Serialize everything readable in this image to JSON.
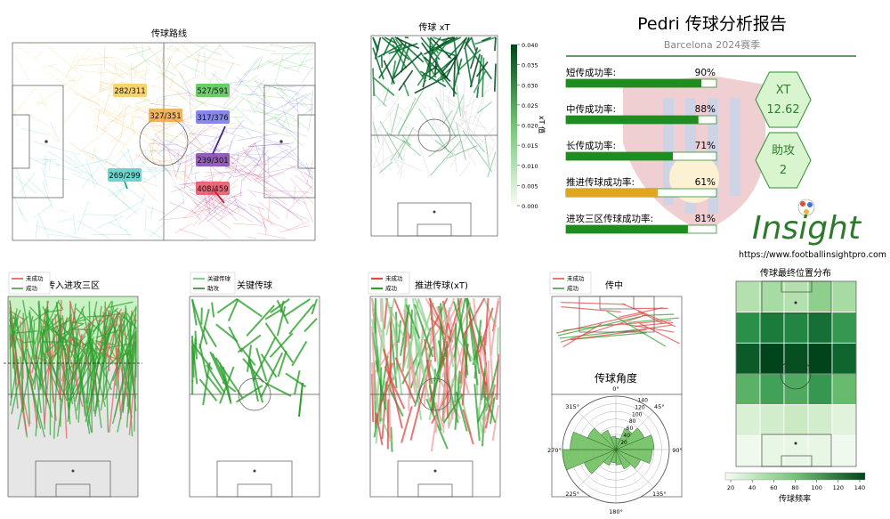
{
  "report": {
    "title": "Pedri 传球分析报告",
    "subtitle": "Barcelona 2024赛季",
    "website": "https://www.footballinsightpro.com",
    "logo_text": "Insight"
  },
  "colors": {
    "accent": "#1e8c1e",
    "gold": "#e0a521",
    "hex_fill": "#d9f5d0",
    "hex_border": "#2f8f2f",
    "success": "#2ca02c",
    "fail": "#e04848"
  },
  "rates": [
    {
      "label": "短传成功率:",
      "value_text": "90%",
      "value": 0.9,
      "color": "#1e8c1e"
    },
    {
      "label": "中传成功率:",
      "value_text": "88%",
      "value": 0.88,
      "color": "#1e8c1e"
    },
    {
      "label": "长传成功率:",
      "value_text": "71%",
      "value": 0.71,
      "color": "#1e8c1e"
    },
    {
      "label": "推进传球成功率:",
      "value_text": "61%",
      "value": 0.61,
      "color": "#e0a521"
    },
    {
      "label": "进攻三区传球成功率:",
      "value_text": "81%",
      "value": 0.81,
      "color": "#1e8c1e"
    }
  ],
  "badges": [
    {
      "label": "XT",
      "value": "12.62"
    },
    {
      "label": "助攻",
      "value": "2"
    }
  ],
  "panels": {
    "routes_title": "传球路线",
    "xt_title": "传球 xT",
    "xt_colorbar_label": "xT 值",
    "final_third_title": "传入进攻三区",
    "key_pass_title": "关键传球",
    "progressive_title": "推进传球(xT)",
    "cross_title": "传中",
    "angle_title": "传球角度",
    "heatmap_title": "传球最终位置分布",
    "heatmap_colorbar_label": "传球频率"
  },
  "legends": {
    "final_third": [
      "未成功",
      "成功"
    ],
    "key_pass": [
      "关键传球",
      "助攻"
    ],
    "progressive": [
      "未成功",
      "成功"
    ],
    "cross": [
      "未成功",
      "成功"
    ]
  },
  "chart_data": [
    {
      "type": "scatter",
      "title": "传球路线",
      "zones": [
        {
          "label": "282/311",
          "color": "#f6c94c"
        },
        {
          "label": "527/591",
          "color": "#49c049"
        },
        {
          "label": "327/351",
          "color": "#f0a33a"
        },
        {
          "label": "317/376",
          "color": "#6a6ae8"
        },
        {
          "label": "239/301",
          "color": "#7a3aa8"
        },
        {
          "label": "269/299",
          "color": "#4cc9c4"
        },
        {
          "label": "408/459",
          "color": "#e8455a"
        }
      ]
    },
    {
      "type": "heatmap",
      "title": "传球 xT",
      "colorbar_ticks": [
        "0.040",
        "0.035",
        "0.030",
        "0.025",
        "0.020",
        "0.015",
        "0.010",
        "0.005",
        "0.000"
      ],
      "clim": [
        0,
        0.04
      ]
    },
    {
      "type": "pie",
      "title": "传球角度",
      "angle_labels": [
        "0°",
        "45°",
        "90°",
        "135°",
        "180°",
        "225°",
        "270°",
        "315°"
      ],
      "radial_ticks": [
        "20",
        "40",
        "60",
        "80",
        "100",
        "120",
        "140"
      ],
      "values": [
        30,
        60,
        80,
        100,
        95,
        70,
        55,
        40,
        35,
        45,
        90,
        140,
        120,
        80,
        55,
        35
      ]
    },
    {
      "type": "heatmap",
      "title": "传球最终位置分布",
      "colorbar_ticks": [
        "20",
        "40",
        "60",
        "80",
        "100",
        "120",
        "140"
      ],
      "clim": [
        15,
        145
      ],
      "grid": [
        [
          55,
          60,
          55,
          70,
          60
        ],
        [
          110,
          120,
          115,
          125,
          105
        ],
        [
          135,
          145,
          140,
          145,
          130
        ],
        [
          90,
          100,
          95,
          105,
          85
        ],
        [
          35,
          40,
          45,
          40,
          30
        ],
        [
          20,
          25,
          25,
          25,
          20
        ]
      ]
    }
  ]
}
